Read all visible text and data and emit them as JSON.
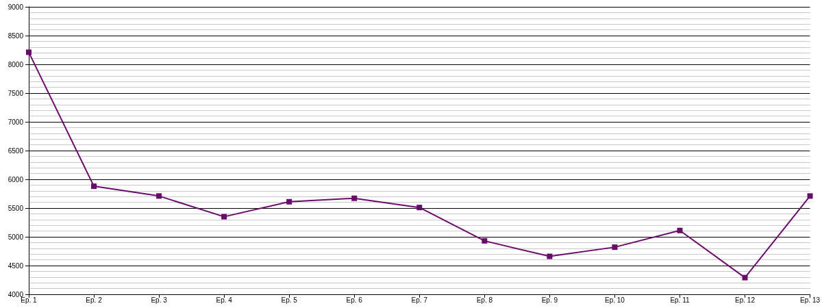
{
  "chart_data": {
    "type": "line",
    "categories": [
      "Ep. 1",
      "Ep. 2",
      "Ep. 3",
      "Ep. 4",
      "Ep. 5",
      "Ep. 6",
      "Ep. 7",
      "Ep. 8",
      "Ep. 9",
      "Ep. 10",
      "Ep. 11",
      "Ep. 12",
      "Ep. 13"
    ],
    "series": [
      {
        "color": "#6a0a6a",
        "values": [
          8210,
          5880,
          5710,
          5350,
          5610,
          5670,
          5510,
          4930,
          4660,
          4820,
          5110,
          4290,
          5710
        ]
      }
    ],
    "ylim": [
      4000,
      9000
    ],
    "yticks": [
      4000,
      4500,
      5000,
      5500,
      6000,
      6500,
      7000,
      7500,
      8000,
      8500,
      9000
    ],
    "grid": "y",
    "marker": "square",
    "line_style": "solid"
  }
}
